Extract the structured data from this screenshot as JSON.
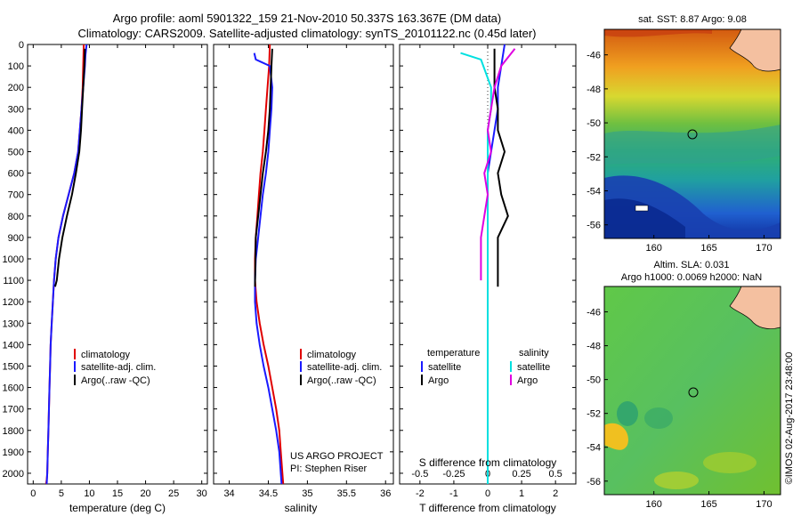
{
  "header": {
    "line1": "Argo profile: aoml 5901322_159 21-Nov-2010 50.337S 163.367E (DM data)",
    "line2": "Climatology: CARS2009. Satellite-adjusted climatology: synTS_20101122.nc (0.45d later)"
  },
  "colors": {
    "climatology": "#e00000",
    "satellite": "#1a1aff",
    "argo": "#000000",
    "satellite_salinity": "#00e0e0",
    "argo_salinity": "#e000e0"
  },
  "chart_data": [
    {
      "type": "line",
      "panel": "temperature",
      "xlabel": "temperature (deg C)",
      "xlim": [
        -1,
        31
      ],
      "ylim": [
        2050,
        0
      ],
      "x_ticks": [
        "0",
        "5",
        "10",
        "15",
        "20",
        "25",
        "30"
      ],
      "y_ticks": [
        "0",
        "100",
        "200",
        "300",
        "400",
        "500",
        "600",
        "700",
        "800",
        "900",
        "1000",
        "1100",
        "1200",
        "1300",
        "1400",
        "1500",
        "1600",
        "1700",
        "1800",
        "1900",
        "2000"
      ],
      "legend": [
        "climatology",
        "satellite-adj. clim.",
        "Argo(..raw -QC)"
      ],
      "series": [
        {
          "name": "climatology",
          "color_key": "climatology",
          "x": [
            9.0,
            8.9,
            8.8,
            8.6,
            8.3,
            8.0,
            7.3,
            6.3,
            5.3,
            4.5,
            4.0,
            3.7,
            3.5,
            3.3,
            3.1,
            3.0,
            2.9,
            2.8,
            2.7,
            2.6,
            2.5,
            2.4,
            2.3
          ],
          "y": [
            0,
            100,
            200,
            300,
            400,
            500,
            600,
            700,
            800,
            900,
            1000,
            1100,
            1200,
            1300,
            1400,
            1500,
            1600,
            1700,
            1800,
            1900,
            2000,
            2030,
            2050
          ]
        },
        {
          "name": "satellite-adj. clim.",
          "color_key": "satellite",
          "x": [
            9.5,
            9.3,
            9.2,
            8.9,
            8.6,
            8.3,
            8.0,
            7.3,
            6.3,
            5.3,
            4.5,
            4.0,
            3.7,
            3.5,
            3.3,
            3.1,
            3.0,
            2.9,
            2.8,
            2.7,
            2.6,
            2.5,
            2.4
          ],
          "y": [
            0,
            50,
            100,
            200,
            300,
            400,
            500,
            600,
            700,
            800,
            900,
            1000,
            1100,
            1200,
            1300,
            1400,
            1500,
            1600,
            1700,
            1800,
            1900,
            2000,
            2050
          ]
        },
        {
          "name": "Argo(..raw -QC)",
          "color_key": "argo",
          "x": [
            9.2,
            9.1,
            8.9,
            8.7,
            8.5,
            8.2,
            7.6,
            6.9,
            6.0,
            5.2,
            4.6,
            4.2,
            3.9
          ],
          "y": [
            20,
            100,
            200,
            300,
            400,
            500,
            600,
            700,
            800,
            900,
            1000,
            1100,
            1130
          ]
        }
      ]
    },
    {
      "type": "line",
      "panel": "salinity",
      "xlabel": "salinity",
      "xlim": [
        33.8,
        36.1
      ],
      "ylim": [
        2050,
        0
      ],
      "x_ticks": [
        "34",
        "34.5",
        "35",
        "35.5",
        "36"
      ],
      "legend": [
        "climatology",
        "satellite-adj. clim.",
        "Argo(..raw -QC)"
      ],
      "annotation": [
        "US ARGO PROJECT",
        "PI: Stephen Riser"
      ],
      "series": [
        {
          "name": "climatology",
          "color_key": "climatology",
          "x": [
            34.52,
            34.51,
            34.49,
            34.47,
            34.45,
            34.43,
            34.4,
            34.38,
            34.36,
            34.34,
            34.33,
            34.33,
            34.35,
            34.39,
            34.44,
            34.5,
            34.55,
            34.6,
            34.64,
            34.66,
            34.68,
            34.69
          ],
          "y": [
            0,
            100,
            200,
            300,
            400,
            500,
            600,
            700,
            800,
            900,
            1000,
            1100,
            1200,
            1300,
            1400,
            1500,
            1600,
            1700,
            1800,
            1900,
            2000,
            2050
          ]
        },
        {
          "name": "satellite-adj. clim.",
          "color_key": "satellite",
          "x": [
            34.32,
            34.34,
            34.4,
            34.52,
            34.55,
            34.54,
            34.52,
            34.5,
            34.47,
            34.43,
            34.4,
            34.37,
            34.34,
            34.33,
            34.33,
            34.35,
            34.39,
            34.44,
            34.5,
            34.55,
            34.6,
            34.64,
            34.66,
            34.67
          ],
          "y": [
            40,
            70,
            80,
            100,
            200,
            300,
            400,
            500,
            600,
            700,
            800,
            900,
            1000,
            1100,
            1200,
            1300,
            1400,
            1500,
            1600,
            1700,
            1800,
            1900,
            2000,
            2050
          ]
        },
        {
          "name": "Argo(..raw -QC)",
          "color_key": "argo",
          "x": [
            34.55,
            34.54,
            34.53,
            34.52,
            34.5,
            34.47,
            34.43,
            34.4,
            34.37,
            34.34,
            34.33
          ],
          "y": [
            20,
            100,
            200,
            300,
            400,
            500,
            600,
            700,
            800,
            900,
            1130
          ]
        }
      ]
    },
    {
      "type": "line",
      "panel": "difference",
      "xlabel": "T difference from climatology",
      "xlabel2": "S difference from climatology",
      "xlim": [
        -2.6,
        2.6
      ],
      "ylim": [
        2050,
        0
      ],
      "x_ticks": [
        "-2",
        "-1",
        "0",
        "1",
        "2"
      ],
      "x_ticks_s": [
        "-0.5",
        "-0.25",
        "0",
        "0.25",
        "0.5"
      ],
      "legend": {
        "temperature_title": "temperature",
        "salinity_title": "salinity",
        "t_satellite": "satellite",
        "t_argo": "Argo",
        "s_satellite": "satellite",
        "s_argo": "Argo"
      },
      "series": [
        {
          "name": "temperature satellite",
          "color_key": "satellite",
          "x": [
            0.5,
            0.4,
            0.3,
            0.3,
            0.2,
            0.1,
            0.0,
            0.0,
            0.0,
            0.0,
            0.0,
            0.0,
            0.0,
            0.0,
            0.0,
            0.0,
            0.0,
            0.0,
            0.0,
            0.0,
            0.0
          ],
          "y": [
            0,
            100,
            200,
            300,
            400,
            500,
            600,
            700,
            800,
            900,
            1000,
            1100,
            1200,
            1300,
            1400,
            1500,
            1600,
            1700,
            1800,
            1900,
            2050
          ]
        },
        {
          "name": "temperature Argo",
          "color_key": "argo",
          "x": [
            0.2,
            0.2,
            0.2,
            0.3,
            0.3,
            0.5,
            0.3,
            0.4,
            0.6,
            0.3,
            0.3,
            0.3
          ],
          "y": [
            20,
            100,
            200,
            300,
            400,
            500,
            600,
            700,
            800,
            900,
            1000,
            1130
          ]
        },
        {
          "name": "salinity satellite",
          "color_key": "satellite_salinity",
          "x": [
            -0.8,
            -0.2,
            0.1,
            0.1,
            0.0,
            0.0,
            0.0,
            0.0,
            0.0,
            0.0,
            0.0,
            0.0,
            0.0,
            0.0,
            0.0,
            0.0,
            0.0,
            0.0,
            0.0,
            0.0
          ],
          "y": [
            40,
            70,
            200,
            300,
            400,
            500,
            600,
            700,
            800,
            900,
            1000,
            1100,
            1200,
            1300,
            1400,
            1500,
            1600,
            1700,
            1900,
            2050
          ]
        },
        {
          "name": "salinity Argo",
          "color_key": "argo_salinity",
          "x": [
            0.8,
            0.4,
            0.2,
            0.1,
            0.0,
            0.1,
            -0.1,
            0.0,
            -0.1,
            -0.2,
            -0.2,
            -0.2
          ],
          "y": [
            20,
            100,
            200,
            300,
            400,
            500,
            600,
            700,
            800,
            900,
            1000,
            1100
          ]
        }
      ]
    }
  ],
  "maps": [
    {
      "title": "sat. SST: 8.87 Argo: 9.08",
      "xlim": [
        155.5,
        171.5
      ],
      "ylim": [
        -56.8,
        -44.5
      ],
      "x_ticks": [
        "160",
        "165",
        "170"
      ],
      "y_ticks": [
        "-46",
        "-48",
        "-50",
        "-52",
        "-54",
        "-56"
      ]
    },
    {
      "title1": "Altim. SLA: 0.031",
      "title2": "Argo h1000: 0.0069 h2000: NaN",
      "xlim": [
        155.5,
        171.5
      ],
      "ylim": [
        -56.8,
        -44.5
      ],
      "x_ticks": [
        "160",
        "165",
        "170"
      ],
      "y_ticks": [
        "-46",
        "-48",
        "-50",
        "-52",
        "-54",
        "-56"
      ]
    }
  ],
  "credit": "©IMOS 02-Aug-2017 23:48:00"
}
